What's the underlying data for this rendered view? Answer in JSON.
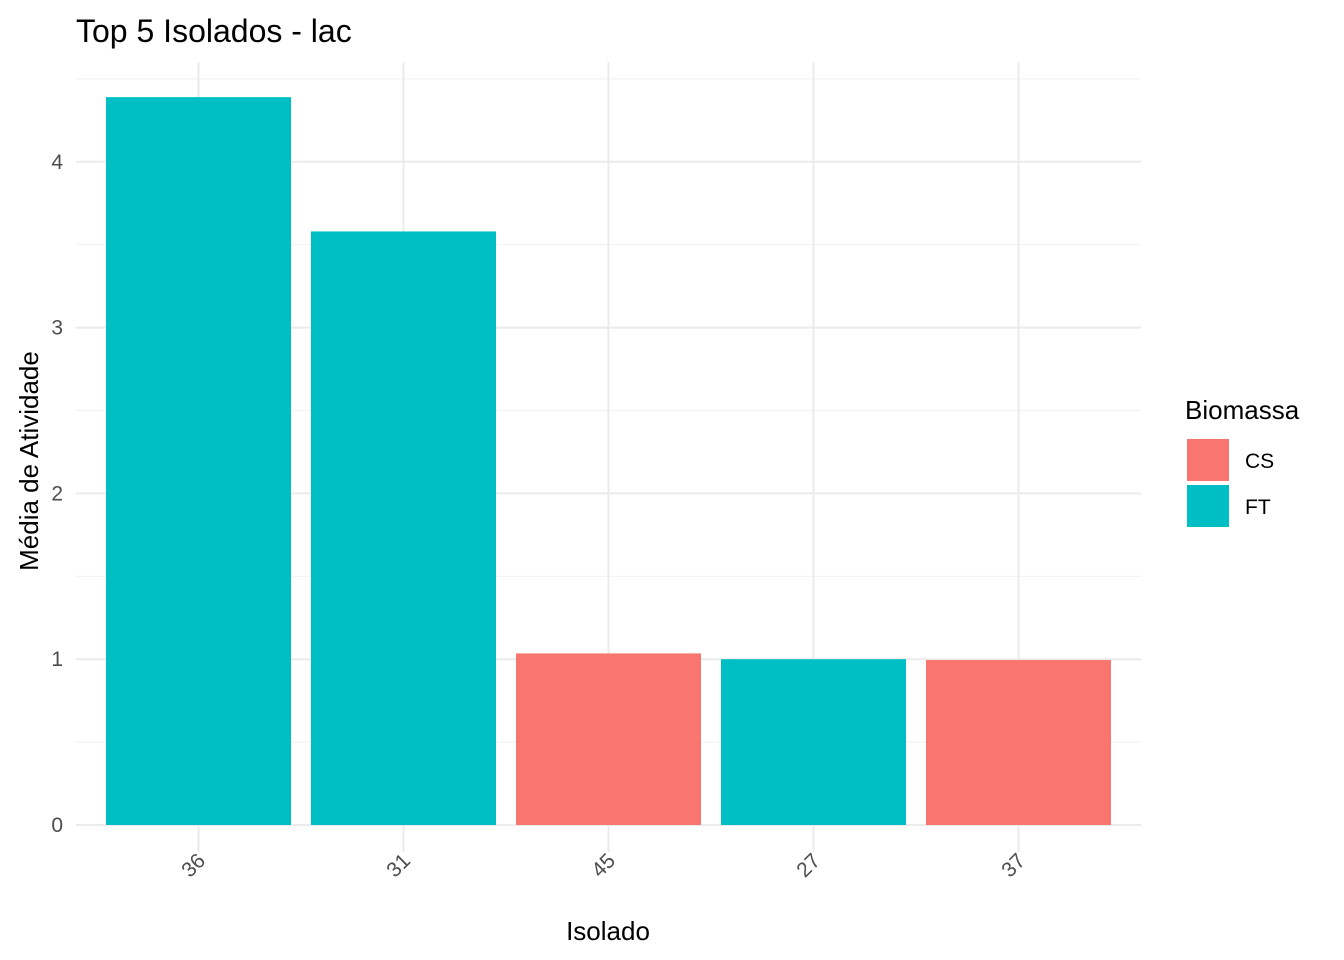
{
  "chart_data": {
    "type": "bar",
    "title": "Top 5 Isolados - lac",
    "xlabel": "Isolado",
    "ylabel": "Média de Atividade",
    "categories": [
      "36",
      "31",
      "45",
      "27",
      "37"
    ],
    "values": [
      4.39,
      3.58,
      1.035,
      1.0,
      0.995
    ],
    "groups": [
      "FT",
      "FT",
      "CS",
      "FT",
      "CS"
    ],
    "ylim": [
      0,
      4.5
    ],
    "yticks": [
      0,
      1,
      2,
      3,
      4
    ],
    "grid": true,
    "legend": {
      "title": "Biomassa",
      "placement": "right",
      "entries": [
        {
          "label": "CS",
          "color": "#F8766D"
        },
        {
          "label": "FT",
          "color": "#00BFC4"
        }
      ]
    }
  }
}
